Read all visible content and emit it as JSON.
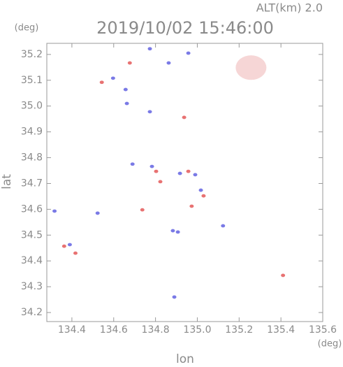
{
  "chart_data": {
    "type": "scatter",
    "title": "2019/10/02 15:46:00",
    "subtitle": "ALT(km) 2.0",
    "xlabel": "lon",
    "ylabel": "lat",
    "x_unit": "(deg)",
    "y_unit": "(deg)",
    "xlim": [
      134.28,
      135.6
    ],
    "ylim": [
      34.165,
      35.243
    ],
    "xticks": [
      134.4,
      134.6,
      134.8,
      {
        "value": 135,
        "label": "135.0"
      },
      135.2,
      135.4,
      135.6
    ],
    "yticks": [
      34.2,
      34.3,
      34.4,
      34.5,
      34.6,
      34.7,
      34.8,
      34.9,
      {
        "value": 35,
        "label": "35.0"
      },
      35.1,
      35.2
    ],
    "series": [
      {
        "color": "#f6d6d6",
        "size": 22,
        "x": [
          135.257
        ],
        "y": [
          35.149
        ]
      },
      {
        "color": "#7a7ae6",
        "size": 3,
        "x": [
          134.773,
          134.957,
          134.863,
          134.657,
          134.597,
          134.663,
          134.773,
          134.783,
          134.69,
          134.917,
          134.99,
          135.017,
          134.883,
          134.907,
          135.123,
          134.317,
          134.523,
          134.89,
          134.39
        ],
        "y": [
          35.222,
          35.205,
          35.167,
          35.064,
          35.108,
          35.01,
          34.978,
          34.766,
          34.775,
          34.739,
          34.734,
          34.674,
          34.517,
          34.512,
          34.536,
          34.593,
          34.585,
          34.26,
          34.463
        ]
      },
      {
        "color": "#e87272",
        "size": 3,
        "x": [
          134.677,
          134.543,
          134.937,
          134.803,
          134.823,
          134.957,
          134.973,
          134.737,
          134.363,
          134.417,
          135.41,
          135.03
        ],
        "y": [
          35.167,
          35.092,
          34.956,
          34.747,
          34.707,
          34.747,
          34.612,
          34.598,
          34.457,
          34.43,
          34.344,
          34.652
        ]
      }
    ]
  }
}
